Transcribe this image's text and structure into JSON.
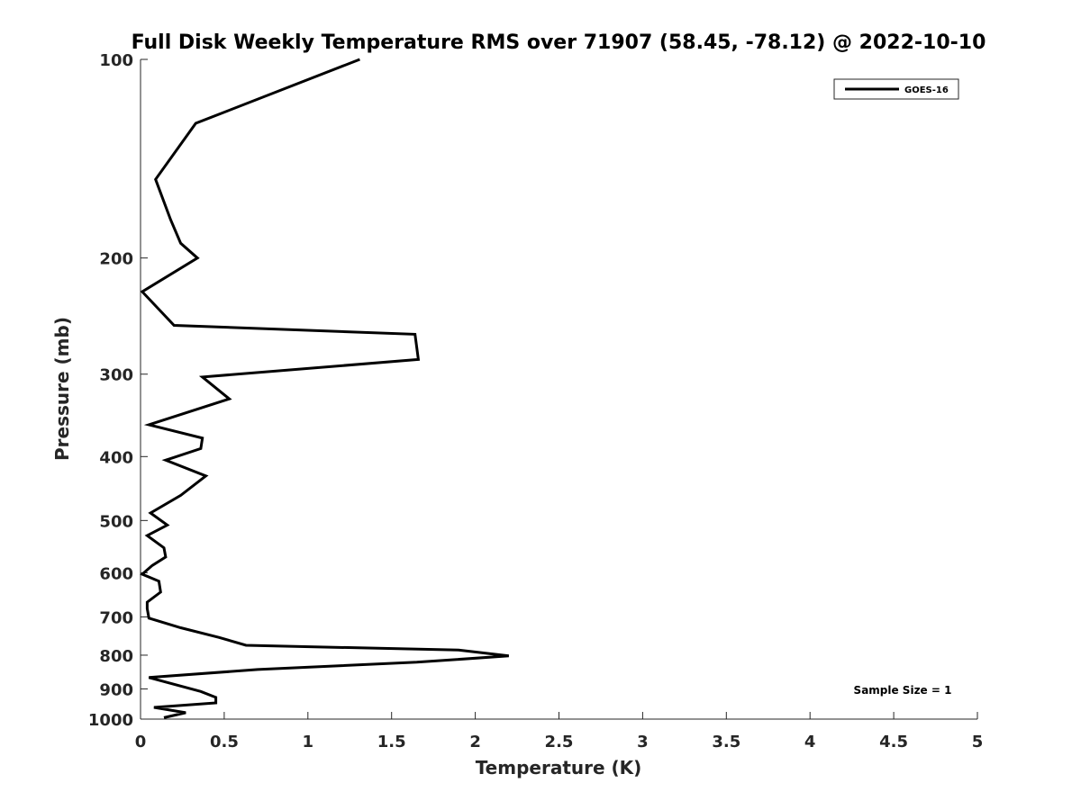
{
  "chart_data": {
    "type": "line",
    "title": "Full Disk Weekly Temperature RMS over 71907 (58.45, -78.12) @ 2022-10-10",
    "xlabel": "Temperature (K)",
    "ylabel": "Pressure (mb)",
    "xlim": [
      0,
      5
    ],
    "ylim": [
      100,
      1000
    ],
    "yscale": "log",
    "y_reversed": true,
    "grid": false,
    "legend_position": "top-right",
    "x_ticks": [
      "0",
      "0.5",
      "1",
      "1.5",
      "2",
      "2.5",
      "3",
      "3.5",
      "4",
      "4.5",
      "5"
    ],
    "y_ticks": [
      "100",
      "200",
      "300",
      "400",
      "500",
      "600",
      "700",
      "800",
      "900",
      "1000"
    ],
    "series": [
      {
        "name": "GOES-16",
        "color": "#000000",
        "points": [
          [
            1.31,
            100
          ],
          [
            0.33,
            125
          ],
          [
            0.09,
            152
          ],
          [
            0.18,
            175
          ],
          [
            0.24,
            190
          ],
          [
            0.34,
            200
          ],
          [
            0.01,
            225
          ],
          [
            0.2,
            253
          ],
          [
            1.64,
            261
          ],
          [
            1.66,
            285
          ],
          [
            0.37,
            303
          ],
          [
            0.53,
            327
          ],
          [
            0.05,
            358
          ],
          [
            0.37,
            375
          ],
          [
            0.36,
            389
          ],
          [
            0.15,
            405
          ],
          [
            0.39,
            428
          ],
          [
            0.24,
            458
          ],
          [
            0.06,
            487
          ],
          [
            0.16,
            508
          ],
          [
            0.04,
            527
          ],
          [
            0.14,
            550
          ],
          [
            0.15,
            568
          ],
          [
            0.07,
            585
          ],
          [
            0.01,
            603
          ],
          [
            0.11,
            618
          ],
          [
            0.12,
            642
          ],
          [
            0.04,
            665
          ],
          [
            0.04,
            680
          ],
          [
            0.05,
            703
          ],
          [
            0.24,
            727
          ],
          [
            0.47,
            752
          ],
          [
            0.63,
            773
          ],
          [
            1.9,
            786
          ],
          [
            2.2,
            802
          ],
          [
            1.65,
            820
          ],
          [
            0.7,
            841
          ],
          [
            0.05,
            865
          ],
          [
            0.36,
            908
          ],
          [
            0.45,
            927
          ],
          [
            0.45,
            945
          ],
          [
            0.08,
            960
          ],
          [
            0.27,
            978
          ],
          [
            0.14,
            995
          ]
        ]
      }
    ],
    "annotations": [
      "Sample Size = 1"
    ]
  }
}
